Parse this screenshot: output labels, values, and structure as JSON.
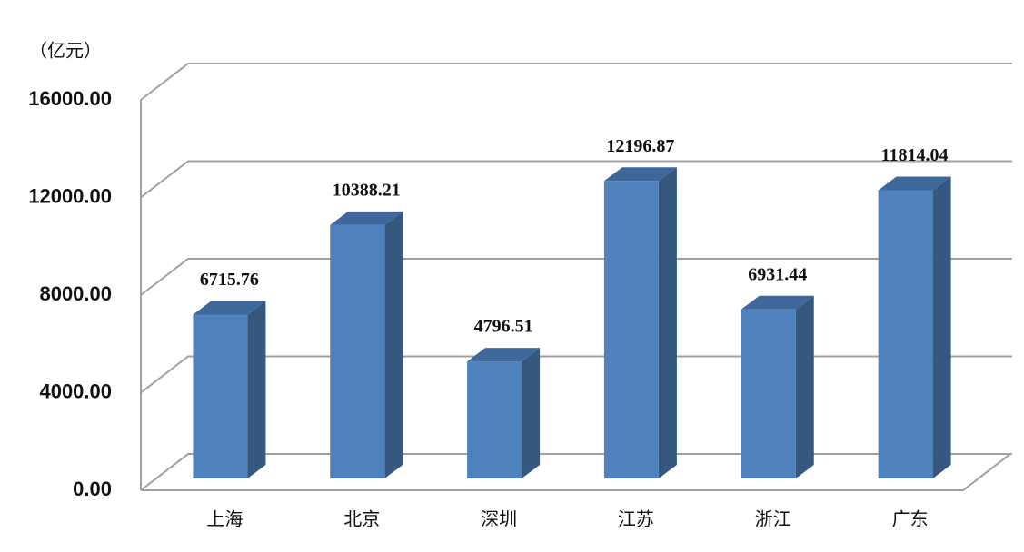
{
  "chart_data": {
    "type": "bar3d",
    "y_axis_label": "（亿元）",
    "categories": [
      "上海",
      "北京",
      "深圳",
      "江苏",
      "浙江",
      "广东"
    ],
    "values": [
      6715.76,
      10388.21,
      4796.51,
      12196.87,
      6931.44,
      11814.04
    ],
    "color": "#4f81bd",
    "ylim": [
      0,
      16000
    ],
    "yticks": [
      {
        "value": 0,
        "label": "0.00"
      },
      {
        "value": 4000,
        "label": "4000.00"
      },
      {
        "value": 8000,
        "label": "8000.00"
      },
      {
        "value": 12000,
        "label": "12000.00"
      },
      {
        "value": 16000,
        "label": "16000.00"
      }
    ],
    "grid": true
  }
}
